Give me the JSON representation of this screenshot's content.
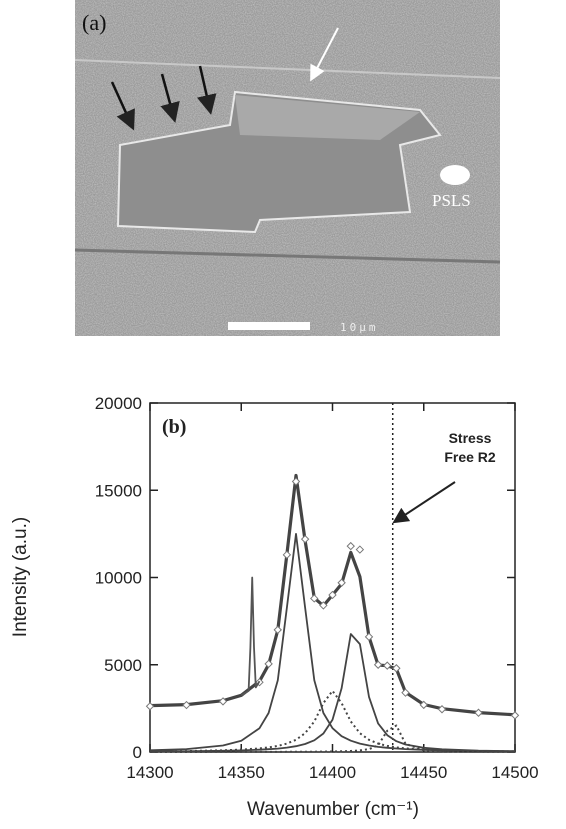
{
  "panel_a": {
    "label": "(a)",
    "annotation": "PSLS",
    "scale_bar": "10μm"
  },
  "chart_data": {
    "type": "line",
    "panel_label": "(b)",
    "x_label": "Wavenumber (cm⁻¹)",
    "y_label": "Intensity (a.u.)",
    "xlim": [
      14300,
      14500
    ],
    "xticks": [
      14300,
      14350,
      14400,
      14450,
      14500
    ],
    "ylim": [
      0,
      20000
    ],
    "yticks": [
      0,
      5000,
      10000,
      15000,
      20000
    ],
    "reference_line": {
      "x": 14433,
      "label_lines": [
        "Stress",
        "Free R2"
      ]
    },
    "series": [
      {
        "color": "#444444",
        "style": "thick",
        "x": [
          14300,
          14320,
          14340,
          14350,
          14360,
          14365,
          14370,
          14375,
          14380,
          14385,
          14390,
          14395,
          14400,
          14405,
          14410,
          14415,
          14420,
          14425,
          14430,
          14435,
          14440,
          14450,
          14460,
          14480,
          14500
        ],
        "values": [
          2660,
          2716,
          2938,
          3251,
          4057,
          5004,
          6992,
          11335,
          15844,
          12115,
          8823,
          8378,
          8996,
          9634,
          11436,
          10046,
          6595,
          4986,
          4943,
          4764,
          3421,
          2723,
          2483,
          2256,
          2130
        ]
      },
      {
        "color": "#777777",
        "style": "markers",
        "x": [
          14300,
          14320,
          14340,
          14360,
          14365,
          14370,
          14375,
          14380,
          14385,
          14390,
          14395,
          14400,
          14405,
          14410,
          14415,
          14420,
          14425,
          14430,
          14435,
          14440,
          14450,
          14460,
          14480,
          14500
        ],
        "values": [
          2620,
          2690,
          2900,
          4000,
          5050,
          7000,
          11300,
          15500,
          12200,
          8800,
          8400,
          9000,
          9700,
          11800,
          11600,
          6600,
          5000,
          4950,
          4800,
          3400,
          2700,
          2450,
          2250,
          2100
        ]
      },
      {
        "color": "#555555",
        "style": "thin",
        "x": [
          14350,
          14354,
          14355,
          14356,
          14357,
          14358,
          14360
        ],
        "values": [
          3251,
          3500,
          6000,
          10000,
          6000,
          3700,
          4057
        ]
      },
      {
        "color": "#444444",
        "style": "thin",
        "x": [
          14300,
          14320,
          14340,
          14350,
          14360,
          14365,
          14370,
          14375,
          14380,
          14385,
          14390,
          14395,
          14400,
          14405,
          14410,
          14415,
          14420,
          14425,
          14430,
          14435,
          14440,
          14450,
          14460,
          14480,
          14500
        ],
        "values": [
          95,
          168,
          371,
          645,
          1365,
          2236,
          4112,
          8278,
          12500,
          8278,
          4112,
          2236,
          1365,
          908,
          645,
          481,
          371,
          295,
          240,
          199,
          168,
          124,
          95,
          61,
          42
        ]
      },
      {
        "color": "#444444",
        "style": "thin",
        "x": [
          14300,
          14320,
          14340,
          14350,
          14360,
          14365,
          14370,
          14375,
          14380,
          14385,
          14390,
          14395,
          14400,
          14405,
          14410,
          14415,
          14420,
          14425,
          14430,
          14435,
          14440,
          14450,
          14460,
          14480,
          14500
        ],
        "values": [
          28,
          42,
          68,
          92,
          130,
          159,
          197,
          252,
          333,
          459,
          670,
          1058,
          1853,
          3650,
          6760,
          6186,
          3160,
          1640,
          960,
          618,
          429,
          239,
          152,
          77,
          46
        ]
      },
      {
        "color": "#444444",
        "style": "dotted",
        "x": [
          14300,
          14320,
          14340,
          14350,
          14360,
          14365,
          14370,
          14375,
          14380,
          14385,
          14390,
          14395,
          14400,
          14405,
          14410,
          14415,
          14420,
          14425,
          14430,
          14435,
          14440,
          14450,
          14460,
          14480,
          14500
        ],
        "values": [
          35,
          54,
          95,
          135,
          206,
          264,
          350,
          483,
          700,
          1077,
          1750,
          2800,
          3500,
          2800,
          1750,
          1077,
          700,
          483,
          350,
          264,
          206,
          135,
          95,
          54,
          35
        ]
      },
      {
        "color": "#444444",
        "style": "dotted",
        "x": [
          14300,
          14320,
          14340,
          14350,
          14360,
          14365,
          14370,
          14375,
          14380,
          14385,
          14390,
          14395,
          14400,
          14405,
          14410,
          14415,
          14420,
          14425,
          14430,
          14435,
          14440,
          14450,
          14460,
          14480,
          14500
        ],
        "values": [
          2,
          2,
          4,
          4,
          6,
          7,
          8,
          9,
          11,
          13,
          16,
          21,
          28,
          38,
          56,
          89,
          164,
          380,
          1218,
          1520,
          468,
          100,
          41,
          14,
          7
        ]
      }
    ]
  }
}
